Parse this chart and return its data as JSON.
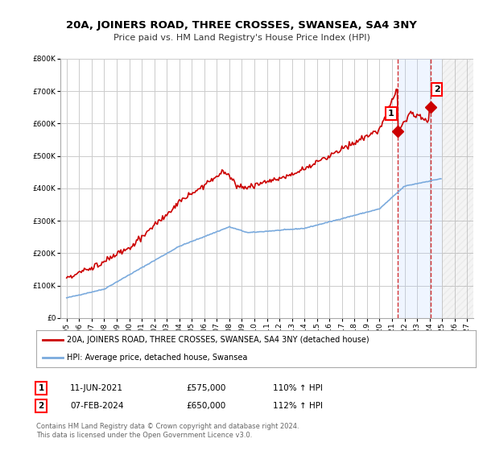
{
  "title": "20A, JOINERS ROAD, THREE CROSSES, SWANSEA, SA4 3NY",
  "subtitle": "Price paid vs. HM Land Registry's House Price Index (HPI)",
  "ylim": [
    0,
    800000
  ],
  "yticks": [
    0,
    100000,
    200000,
    300000,
    400000,
    500000,
    600000,
    700000,
    800000
  ],
  "background_color": "#ffffff",
  "grid_color": "#cccccc",
  "hpi_color": "#7aaadd",
  "price_color": "#cc0000",
  "vline_color": "#cc0000",
  "marker1_x": 2021.44,
  "marker1_y": 575000,
  "marker2_x": 2024.09,
  "marker2_y": 650000,
  "marker1_label": "1",
  "marker2_label": "2",
  "legend_price": "20A, JOINERS ROAD, THREE CROSSES, SWANSEA, SA4 3NY (detached house)",
  "legend_hpi": "HPI: Average price, detached house, Swansea",
  "table_row1": [
    "1",
    "11-JUN-2021",
    "£575,000",
    "110% ↑ HPI"
  ],
  "table_row2": [
    "2",
    "07-FEB-2024",
    "£650,000",
    "112% ↑ HPI"
  ],
  "footnote": "Contains HM Land Registry data © Crown copyright and database right 2024.\nThis data is licensed under the Open Government Licence v3.0.",
  "shade_x_start": 2021.44,
  "shade_x_end": 2025.0,
  "hatch_x_start": 2025.0,
  "hatch_x_end": 2027.5,
  "xmin": 1994.5,
  "xmax": 2027.5,
  "data_end_x": 2025.0
}
